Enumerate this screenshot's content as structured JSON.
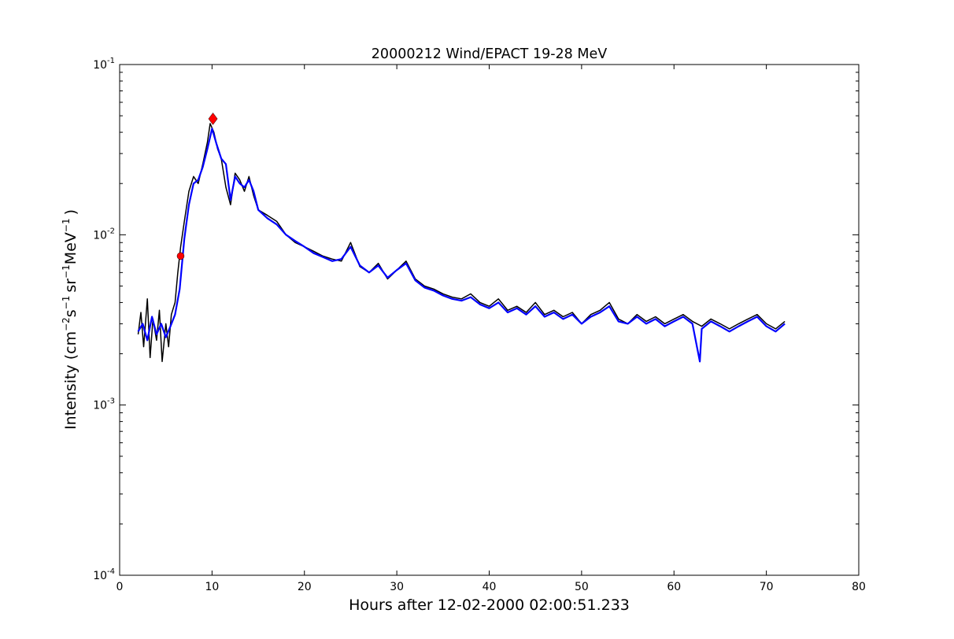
{
  "chart_data": {
    "type": "line",
    "title": "20000212 Wind/EPACT 19-28 MeV",
    "xlabel": "Hours after 12-02-2000 02:00:51.233",
    "ylabel": {
      "prefix": "Intensity (cm",
      "exp1": "−2",
      "s": "s",
      "exp2": "−1",
      "sr": "sr",
      "exp3": "−1",
      "mev": "MeV",
      "exp4": "−1",
      "suffix": ")"
    },
    "xlim": [
      0,
      80
    ],
    "ylim": [
      0.0001,
      0.1
    ],
    "yscale": "log",
    "grid": false,
    "xticks": [
      0,
      10,
      20,
      30,
      40,
      50,
      60,
      70,
      80
    ],
    "yticks": [
      {
        "value": 0.0001,
        "base": "10",
        "exp": "-4"
      },
      {
        "value": 0.001,
        "base": "10",
        "exp": "-3"
      },
      {
        "value": 0.01,
        "base": "10",
        "exp": "-2"
      },
      {
        "value": 0.1,
        "base": "10",
        "exp": "-1"
      }
    ],
    "series": [
      {
        "color": "#000000",
        "style": "raw intensity",
        "x": [
          2.0,
          2.3,
          2.6,
          3.0,
          3.3,
          3.6,
          4.0,
          4.3,
          4.6,
          5.0,
          5.3,
          5.6,
          6.0,
          6.3,
          6.6,
          7.0,
          7.5,
          8.0,
          8.5,
          9.0,
          9.5,
          9.8,
          10.2,
          10.6,
          11.0,
          11.5,
          12.0,
          12.5,
          13.0,
          13.5,
          14.0,
          14.5,
          15.0,
          16.0,
          17.0,
          18.0,
          19.0,
          20.0,
          21.0,
          22.0,
          23.0,
          24.0,
          25.0,
          26.0,
          27.0,
          28.0,
          29.0,
          30.0,
          31.0,
          32.0,
          33.0,
          34.0,
          35.0,
          36.0,
          37.0,
          38.0,
          39.0,
          40.0,
          41.0,
          42.0,
          43.0,
          44.0,
          45.0,
          46.0,
          47.0,
          48.0,
          49.0,
          50.0,
          51.0,
          52.0,
          53.0,
          54.0,
          55.0,
          56.0,
          57.0,
          58.0,
          59.0,
          60.0,
          61.0,
          62.0,
          63.0,
          64.0,
          65.0,
          66.0,
          67.0,
          68.0,
          69.0,
          70.0,
          71.0,
          72.0
        ],
        "y": [
          0.0026,
          0.0035,
          0.0022,
          0.0042,
          0.0019,
          0.0032,
          0.0024,
          0.0036,
          0.0018,
          0.003,
          0.0022,
          0.0034,
          0.004,
          0.006,
          0.0085,
          0.012,
          0.018,
          0.022,
          0.02,
          0.026,
          0.035,
          0.045,
          0.04,
          0.032,
          0.028,
          0.019,
          0.015,
          0.023,
          0.021,
          0.018,
          0.022,
          0.017,
          0.014,
          0.013,
          0.012,
          0.01,
          0.009,
          0.0085,
          0.008,
          0.0075,
          0.0072,
          0.007,
          0.009,
          0.0065,
          0.006,
          0.0068,
          0.0055,
          0.0062,
          0.007,
          0.0055,
          0.005,
          0.0048,
          0.0045,
          0.0043,
          0.0042,
          0.0045,
          0.004,
          0.0038,
          0.0042,
          0.0036,
          0.0038,
          0.0035,
          0.004,
          0.0034,
          0.0036,
          0.0033,
          0.0035,
          0.003,
          0.0034,
          0.0036,
          0.004,
          0.0032,
          0.003,
          0.0034,
          0.0031,
          0.0033,
          0.003,
          0.0032,
          0.0034,
          0.0031,
          0.0029,
          0.0032,
          0.003,
          0.0028,
          0.003,
          0.0032,
          0.0034,
          0.003,
          0.0028,
          0.0031
        ]
      },
      {
        "color": "#0000ff",
        "style": "smoothed intensity",
        "x": [
          2.0,
          2.5,
          3.0,
          3.5,
          4.0,
          4.5,
          5.0,
          5.5,
          6.0,
          6.5,
          7.0,
          7.5,
          8.0,
          8.5,
          9.0,
          9.5,
          10.0,
          10.5,
          11.0,
          11.5,
          12.0,
          12.5,
          13.0,
          13.5,
          14.0,
          14.5,
          15.0,
          16.0,
          17.0,
          18.0,
          19.0,
          20.0,
          21.0,
          22.0,
          23.0,
          24.0,
          25.0,
          26.0,
          27.0,
          28.0,
          29.0,
          30.0,
          31.0,
          32.0,
          33.0,
          34.0,
          35.0,
          36.0,
          37.0,
          38.0,
          39.0,
          40.0,
          41.0,
          42.0,
          43.0,
          44.0,
          45.0,
          46.0,
          47.0,
          48.0,
          49.0,
          50.0,
          51.0,
          52.0,
          53.0,
          54.0,
          55.0,
          56.0,
          57.0,
          58.0,
          59.0,
          60.0,
          61.0,
          62.0,
          62.8,
          63.0,
          64.0,
          65.0,
          66.0,
          67.0,
          68.0,
          69.0,
          70.0,
          71.0,
          72.0
        ],
        "y": [
          0.0027,
          0.003,
          0.0024,
          0.0033,
          0.0026,
          0.003,
          0.0025,
          0.0029,
          0.0034,
          0.0048,
          0.0095,
          0.015,
          0.02,
          0.021,
          0.025,
          0.032,
          0.042,
          0.034,
          0.028,
          0.026,
          0.016,
          0.022,
          0.02,
          0.019,
          0.021,
          0.018,
          0.014,
          0.0125,
          0.0115,
          0.01,
          0.0092,
          0.0085,
          0.0078,
          0.0074,
          0.007,
          0.0072,
          0.0085,
          0.0066,
          0.006,
          0.0066,
          0.0056,
          0.0062,
          0.0068,
          0.0054,
          0.0049,
          0.0047,
          0.0044,
          0.0042,
          0.0041,
          0.0043,
          0.0039,
          0.0037,
          0.004,
          0.0035,
          0.0037,
          0.0034,
          0.0038,
          0.0033,
          0.0035,
          0.0032,
          0.0034,
          0.003,
          0.0033,
          0.0035,
          0.0038,
          0.0031,
          0.003,
          0.0033,
          0.003,
          0.0032,
          0.0029,
          0.0031,
          0.0033,
          0.003,
          0.0018,
          0.0028,
          0.0031,
          0.0029,
          0.0027,
          0.0029,
          0.0031,
          0.0033,
          0.0029,
          0.0027,
          0.003
        ]
      }
    ],
    "markers": [
      {
        "shape": "circle",
        "color": "#ff0000",
        "x": 6.6,
        "y": 0.0075
      },
      {
        "shape": "diamond",
        "color": "#ff0000",
        "x": 10.1,
        "y": 0.048
      }
    ]
  }
}
